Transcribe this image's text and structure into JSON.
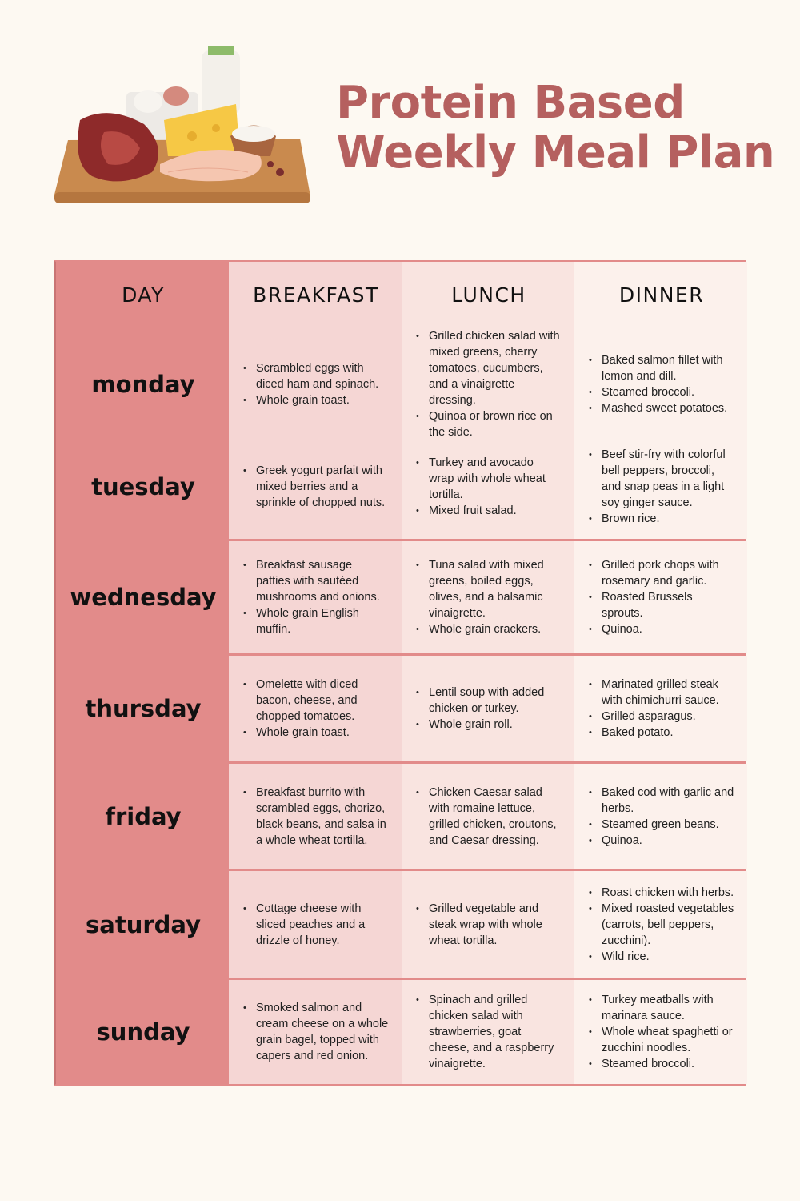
{
  "title": {
    "line1": "Protein Based",
    "line2": "Weekly Meal Plan"
  },
  "colors": {
    "title": "#b5605f",
    "day_column": "#e28b8a",
    "breakfast": "#f5d6d4",
    "lunch": "#f9e4e0",
    "dinner": "#fcf1ec",
    "background": "#fdf9f2"
  },
  "headers": [
    "DAY",
    "BREAKFAST",
    "LUNCH",
    "DINNER"
  ],
  "days": [
    {
      "day": "monday",
      "breakfast": [
        "Scrambled eggs with diced ham and spinach.",
        "Whole grain toast."
      ],
      "lunch": [
        "Grilled chicken salad with mixed greens, cherry tomatoes, cucumbers, and a vinaigrette dressing.",
        "Quinoa or brown rice on the side."
      ],
      "dinner": [
        "Baked salmon fillet with lemon and dill.",
        "Steamed broccoli.",
        "Mashed sweet potatoes."
      ]
    },
    {
      "day": "tuesday",
      "breakfast": [
        "Greek yogurt parfait with mixed berries and a sprinkle of chopped nuts."
      ],
      "lunch": [
        "Turkey and avocado wrap with whole wheat tortilla.",
        "Mixed fruit salad."
      ],
      "dinner": [
        "Beef stir-fry with colorful bell peppers, broccoli, and snap peas in a light soy ginger sauce.",
        "Brown rice."
      ]
    },
    {
      "day": "wednesday",
      "breakfast": [
        "Breakfast sausage patties with sautéed mushrooms and onions.",
        "Whole grain English muffin."
      ],
      "lunch": [
        "Tuna salad with mixed greens, boiled eggs, olives, and a balsamic vinaigrette.",
        "Whole grain crackers."
      ],
      "dinner": [
        "Grilled pork chops with rosemary and garlic.",
        "Roasted Brussels sprouts.",
        "Quinoa."
      ]
    },
    {
      "day": "thursday",
      "breakfast": [
        "Omelette with diced bacon, cheese, and chopped tomatoes.",
        "Whole grain toast."
      ],
      "lunch": [
        "Lentil soup with added chicken or turkey.",
        "Whole grain roll."
      ],
      "dinner": [
        "Marinated grilled steak with chimichurri sauce.",
        "Grilled asparagus.",
        "Baked potato."
      ]
    },
    {
      "day": "friday",
      "breakfast": [
        "Breakfast burrito with scrambled eggs, chorizo, black beans, and salsa in a whole wheat tortilla."
      ],
      "lunch": [
        "Chicken Caesar salad with romaine lettuce, grilled chicken, croutons, and Caesar dressing."
      ],
      "dinner": [
        "Baked cod with garlic and herbs.",
        "Steamed green beans.",
        "Quinoa."
      ]
    },
    {
      "day": "saturday",
      "breakfast": [
        "Cottage cheese with sliced peaches and a drizzle of honey."
      ],
      "lunch": [
        "Grilled vegetable and steak wrap with whole wheat tortilla."
      ],
      "dinner": [
        "Roast chicken with herbs.",
        "Mixed roasted vegetables (carrots, bell peppers, zucchini).",
        "Wild rice."
      ]
    },
    {
      "day": "sunday",
      "breakfast": [
        "Smoked salmon and cream cheese on a whole grain bagel, topped with capers and red onion."
      ],
      "lunch": [
        "Spinach and grilled chicken salad with strawberries, goat cheese, and a raspberry vinaigrette."
      ],
      "dinner": [
        "Turkey meatballs with marinara sauce.",
        "Whole wheat spaghetti or zucchini noodles.",
        "Steamed broccoli."
      ]
    }
  ]
}
